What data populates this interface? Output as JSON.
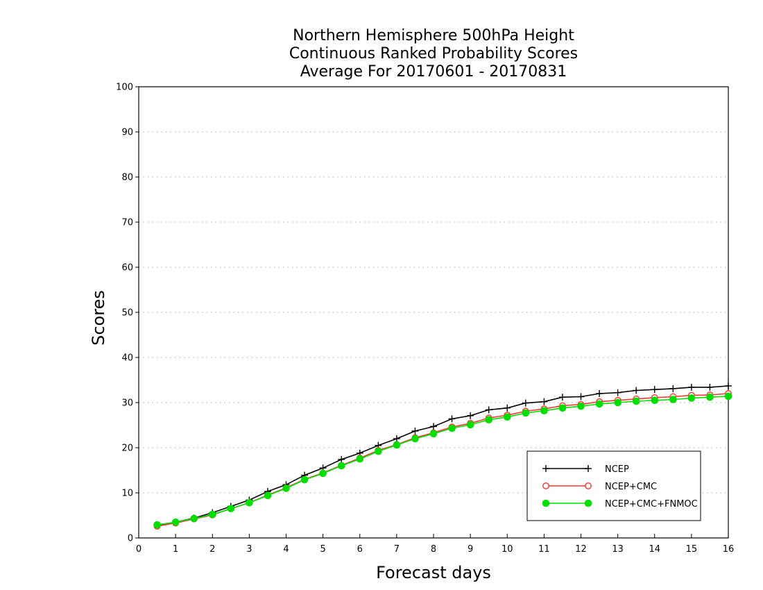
{
  "chart_data": {
    "type": "line",
    "title_lines": [
      "Northern Hemisphere 500hPa Height",
      "Continuous Ranked Probability Scores",
      "Average For 20170601 - 20170831"
    ],
    "xlabel": "Forecast days",
    "ylabel": "Scores",
    "xlim": [
      0,
      16
    ],
    "ylim": [
      0,
      100
    ],
    "x_ticks": [
      0,
      1,
      2,
      3,
      4,
      5,
      6,
      7,
      8,
      9,
      10,
      11,
      12,
      13,
      14,
      15,
      16
    ],
    "y_ticks": [
      0,
      10,
      20,
      30,
      40,
      50,
      60,
      70,
      80,
      90,
      100
    ],
    "grid": "horizontal dotted",
    "legend_position": "bottom-right",
    "x": [
      0.5,
      1,
      1.5,
      2,
      2.5,
      3,
      3.5,
      4,
      4.5,
      5,
      5.5,
      6,
      6.5,
      7,
      7.5,
      8,
      8.5,
      9,
      9.5,
      10,
      10.5,
      11,
      11.5,
      12,
      12.5,
      13,
      13.5,
      14,
      14.5,
      15,
      15.5,
      16
    ],
    "series": [
      {
        "name": "NCEP",
        "color": "#000000",
        "marker": "plus",
        "values": [
          2.8,
          3.5,
          4.4,
          5.6,
          7.0,
          8.4,
          10.3,
          11.8,
          13.9,
          15.5,
          17.4,
          18.8,
          20.5,
          22.0,
          23.7,
          24.7,
          26.4,
          27.1,
          28.4,
          28.8,
          29.9,
          30.2,
          31.2,
          31.3,
          32.0,
          32.2,
          32.7,
          32.9,
          33.1,
          33.4,
          33.4,
          33.7
        ]
      },
      {
        "name": "NCEP+CMC",
        "color": "#ff3333",
        "marker": "open-circle",
        "values": [
          2.6,
          3.3,
          4.2,
          5.1,
          6.5,
          7.8,
          9.5,
          11.1,
          13.0,
          14.4,
          16.1,
          17.7,
          19.4,
          20.7,
          22.2,
          23.3,
          24.6,
          25.4,
          26.6,
          27.2,
          28.1,
          28.6,
          29.3,
          29.6,
          30.2,
          30.5,
          30.8,
          31.1,
          31.3,
          31.6,
          31.7,
          32.0
        ]
      },
      {
        "name": "NCEP+CMC+FNMOC",
        "color": "#00dd00",
        "marker": "filled-circle",
        "values": [
          2.9,
          3.5,
          4.3,
          5.2,
          6.5,
          7.8,
          9.4,
          11.0,
          12.9,
          14.3,
          16.0,
          17.5,
          19.2,
          20.6,
          22.0,
          23.1,
          24.3,
          25.1,
          26.2,
          26.8,
          27.7,
          28.2,
          28.8,
          29.2,
          29.7,
          30.0,
          30.3,
          30.5,
          30.7,
          31.0,
          31.2,
          31.4
        ]
      }
    ]
  }
}
